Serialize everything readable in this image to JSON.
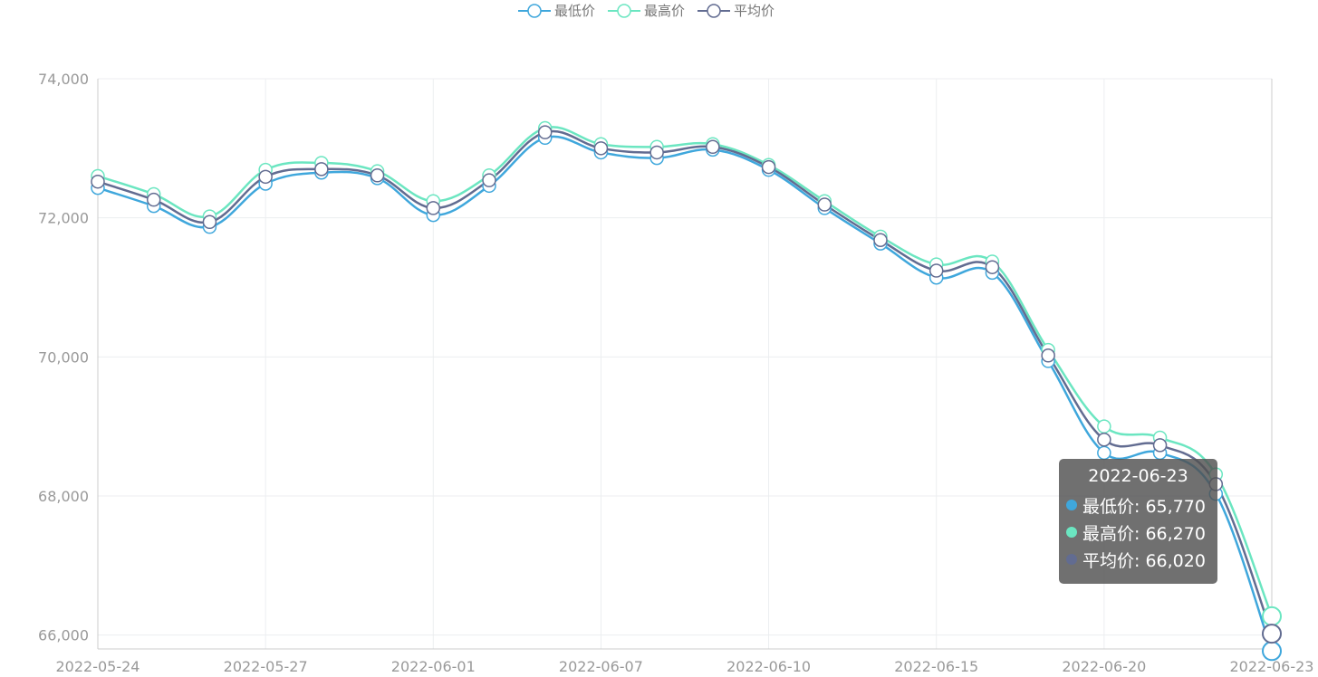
{
  "legend": [
    {
      "name": "最低价",
      "color": "#3fa7dc"
    },
    {
      "name": "最高价",
      "color": "#6be6c1"
    },
    {
      "name": "平均价",
      "color": "#626c91"
    }
  ],
  "chart_data": {
    "type": "line",
    "smooth": true,
    "x": [
      "2022-05-24",
      "2022-05-25",
      "2022-05-26",
      "2022-05-27",
      "2022-05-30",
      "2022-05-31",
      "2022-06-01",
      "2022-06-02",
      "2022-06-06",
      "2022-06-07",
      "2022-06-08",
      "2022-06-09",
      "2022-06-10",
      "2022-06-13",
      "2022-06-14",
      "2022-06-15",
      "2022-06-16",
      "2022-06-17",
      "2022-06-20",
      "2022-06-21",
      "2022-06-22",
      "2022-06-23"
    ],
    "x_tick_labels": [
      "2022-05-24",
      "2022-05-27",
      "2022-06-01",
      "2022-06-07",
      "2022-06-10",
      "2022-06-15",
      "2022-06-20",
      "2022-06-23"
    ],
    "y_tick_labels": [
      "66,000",
      "68,000",
      "70,000",
      "72,000",
      "74,000"
    ],
    "ylim": [
      65800,
      74000
    ],
    "grid": true,
    "legend_position": "top-center",
    "series": [
      {
        "name": "最低价",
        "color": "#3fa7dc",
        "values": [
          72430,
          72170,
          71870,
          72490,
          72650,
          72570,
          72040,
          72460,
          73150,
          72940,
          72860,
          72980,
          72690,
          72140,
          71630,
          71140,
          71210,
          69940,
          68620,
          68620,
          68030,
          65770
        ]
      },
      {
        "name": "最高价",
        "color": "#6be6c1",
        "values": [
          72600,
          72340,
          72020,
          72690,
          72790,
          72670,
          72240,
          72610,
          73290,
          73060,
          73020,
          73060,
          72760,
          72240,
          71730,
          71330,
          71370,
          70100,
          69000,
          68840,
          68310,
          66270
        ]
      },
      {
        "name": "平均价",
        "color": "#626c91",
        "values": [
          72520,
          72260,
          71940,
          72590,
          72700,
          72610,
          72140,
          72540,
          73230,
          73000,
          72940,
          73020,
          72730,
          72190,
          71680,
          71240,
          71290,
          70020,
          68810,
          68730,
          68170,
          66020
        ]
      }
    ]
  },
  "tooltip": {
    "title": "2022-06-23",
    "rows": [
      {
        "label": "最低价: 65,770",
        "color": "#3fa7dc"
      },
      {
        "label": "最高价: 66,270",
        "color": "#6be6c1"
      },
      {
        "label": "平均价: 66,020",
        "color": "#626c91"
      }
    ]
  }
}
